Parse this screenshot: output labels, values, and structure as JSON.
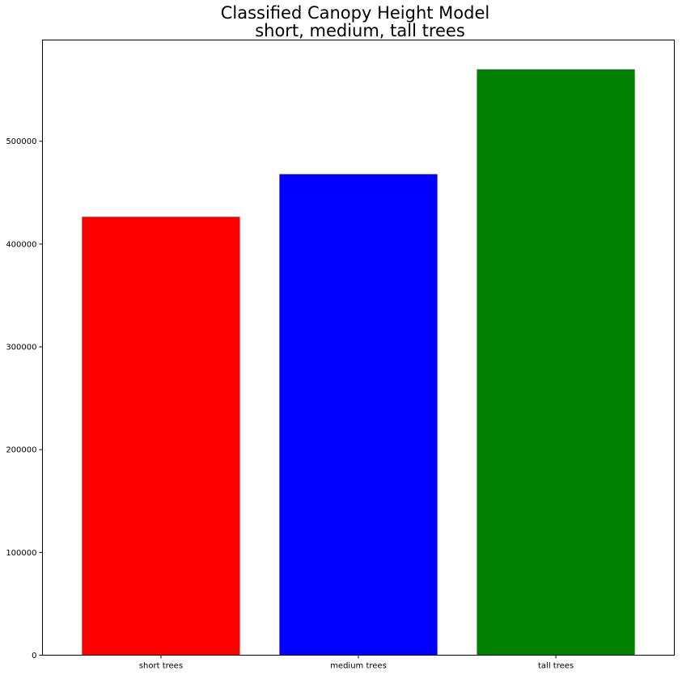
{
  "chart_data": {
    "type": "bar",
    "title_lines": [
      "Classified Canopy Height Model",
      "short, medium, tall trees"
    ],
    "xlabel": "",
    "ylabel": "",
    "categories": [
      "short trees",
      "medium trees",
      "tall trees"
    ],
    "values": [
      426500,
      468000,
      570000
    ],
    "colors": [
      "#ff0000",
      "#0000ff",
      "#008000"
    ],
    "ylim": [
      0,
      598500
    ],
    "yticks": [
      0,
      100000,
      200000,
      300000,
      400000,
      500000
    ],
    "ytick_labels": [
      "0",
      "100000",
      "200000",
      "300000",
      "400000",
      "500000"
    ],
    "grid": false,
    "legend": "none"
  }
}
